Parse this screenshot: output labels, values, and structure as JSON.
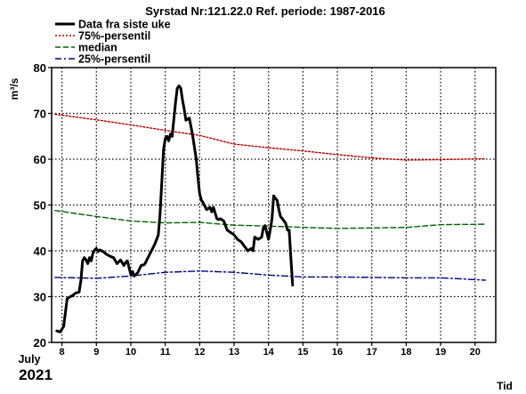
{
  "chart_data": {
    "type": "line",
    "title": "Syrstad Nr:121.22.0 Ref. periode: 1987-2016",
    "ylabel": "m³/s",
    "xlabel": "Tid",
    "x_month_label": "July",
    "x_year_label": "2021",
    "ylim": [
      20,
      80
    ],
    "xlim": [
      7.7,
      20.6
    ],
    "yticks": [
      20,
      30,
      40,
      50,
      60,
      70,
      80
    ],
    "xticks": [
      8,
      9,
      10,
      11,
      12,
      13,
      14,
      15,
      16,
      17,
      18,
      19,
      20
    ],
    "grid": true,
    "legend_position": "top-left",
    "series": [
      {
        "name": "Data fra siste uke",
        "color": "#000000",
        "style": "solid",
        "x": [
          7.85,
          7.95,
          8.05,
          8.1,
          8.15,
          8.2,
          8.3,
          8.4,
          8.5,
          8.55,
          8.6,
          8.65,
          8.7,
          8.75,
          8.8,
          8.85,
          8.9,
          8.95,
          9.0,
          9.05,
          9.1,
          9.2,
          9.3,
          9.4,
          9.5,
          9.6,
          9.7,
          9.8,
          9.85,
          9.9,
          10.0,
          10.05,
          10.1,
          10.2,
          10.3,
          10.4,
          10.5,
          10.6,
          10.7,
          10.75,
          10.8,
          10.85,
          10.9,
          10.95,
          11.0,
          11.05,
          11.1,
          11.15,
          11.2,
          11.3,
          11.35,
          11.4,
          11.45,
          11.5,
          11.55,
          11.6,
          11.7,
          11.75,
          11.8,
          11.9,
          11.95,
          12.0,
          12.05,
          12.1,
          12.2,
          12.3,
          12.35,
          12.4,
          12.5,
          12.55,
          12.6,
          12.7,
          12.8,
          12.9,
          13.0,
          13.1,
          13.2,
          13.3,
          13.4,
          13.5,
          13.55,
          13.6,
          13.7,
          13.8,
          13.85,
          13.9,
          14.0,
          14.05,
          14.1,
          14.15,
          14.2,
          14.25,
          14.3,
          14.35,
          14.4,
          14.5,
          14.55,
          14.6,
          14.65,
          14.7
        ],
        "y": [
          22.5,
          22.3,
          23.5,
          26.5,
          29.5,
          29.8,
          30.2,
          30.8,
          31.0,
          33.5,
          37.8,
          38.5,
          38.0,
          37.2,
          38.5,
          37.8,
          39.5,
          40.2,
          40.5,
          39.8,
          40.2,
          39.8,
          39.2,
          38.8,
          38.5,
          37.2,
          38.0,
          36.8,
          37.5,
          37.8,
          34.8,
          35.5,
          34.5,
          35.2,
          36.8,
          37.0,
          38.5,
          40.0,
          41.5,
          42.5,
          43.5,
          48.0,
          55.0,
          62.0,
          64.5,
          65.0,
          64.0,
          65.5,
          65.0,
          72.5,
          75.5,
          76.0,
          75.5,
          73.0,
          71.0,
          68.5,
          69.0,
          67.0,
          65.0,
          60.0,
          56.0,
          52.5,
          51.0,
          50.5,
          49.0,
          49.5,
          48.5,
          49.5,
          47.0,
          46.8,
          47.0,
          46.5,
          44.5,
          44.0,
          43.5,
          42.5,
          42.0,
          41.0,
          40.0,
          40.5,
          40.0,
          43.0,
          42.5,
          43.0,
          45.0,
          45.5,
          42.5,
          44.5,
          47.0,
          52.0,
          51.5,
          51.0,
          49.0,
          47.5,
          47.0,
          46.0,
          44.5,
          44.5,
          38.5,
          32.5
        ]
      },
      {
        "name": "75%-persentil",
        "color": "#c00000",
        "style": "dotted",
        "x": [
          7.8,
          9.0,
          10.0,
          11.0,
          12.0,
          13.0,
          14.0,
          15.0,
          16.0,
          17.0,
          18.0,
          19.0,
          20.3
        ],
        "y": [
          69.8,
          68.6,
          67.5,
          66.3,
          65.2,
          63.3,
          62.5,
          61.8,
          61.0,
          60.3,
          59.8,
          59.9,
          60.1
        ]
      },
      {
        "name": "median",
        "color": "#006400",
        "style": "dashed",
        "x": [
          7.8,
          9.0,
          10.0,
          11.0,
          12.0,
          13.0,
          14.0,
          15.0,
          16.0,
          17.0,
          18.0,
          19.0,
          20.3
        ],
        "y": [
          48.8,
          47.5,
          46.5,
          46.1,
          46.2,
          45.6,
          45.4,
          45.1,
          44.9,
          45.0,
          45.1,
          45.7,
          45.8
        ]
      },
      {
        "name": "25%-persentil",
        "color": "#00008b",
        "style": "dashdot",
        "x": [
          7.8,
          9.0,
          10.0,
          11.0,
          12.0,
          13.0,
          14.0,
          15.0,
          16.0,
          17.0,
          18.0,
          19.0,
          20.3
        ],
        "y": [
          34.2,
          34.0,
          34.5,
          35.3,
          35.6,
          35.3,
          34.7,
          34.3,
          34.3,
          34.2,
          34.1,
          34.1,
          33.6
        ]
      }
    ]
  }
}
